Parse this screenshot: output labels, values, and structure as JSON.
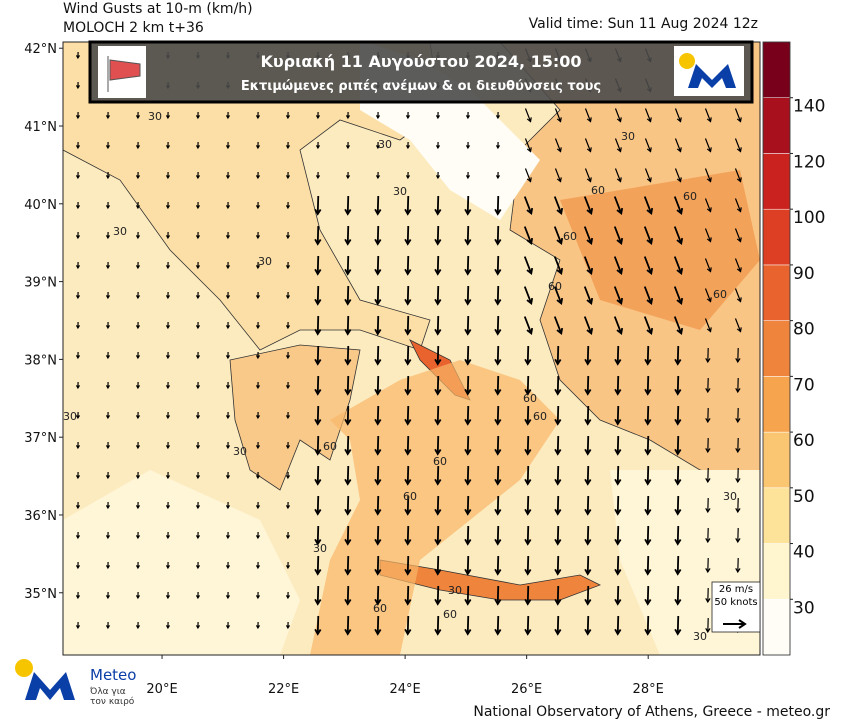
{
  "header": {
    "title": "Wind Gusts at 10-m (km/h)",
    "model": "MOLOCH 2 km t+36",
    "valid_time": "Valid time: Sun 11 Aug 2024 12z"
  },
  "banner": {
    "date": "Κυριακή  11 Αυγούστου 2024, 15:00",
    "subtitle": "Εκτιμώμενες ριπές ανέμων & οι διευθύνσεις τους"
  },
  "map": {
    "lat_ticks": [
      {
        "value": 42,
        "label": "42°N"
      },
      {
        "value": 41,
        "label": "41°N"
      },
      {
        "value": 40,
        "label": "40°N"
      },
      {
        "value": 39,
        "label": "39°N"
      },
      {
        "value": 38,
        "label": "38°N"
      },
      {
        "value": 37,
        "label": "37°N"
      },
      {
        "value": 36,
        "label": "36°N"
      },
      {
        "value": 35,
        "label": "35°N"
      }
    ],
    "lon_ticks": [
      {
        "value": 20,
        "label": "20°E"
      },
      {
        "value": 22,
        "label": "22°E"
      },
      {
        "value": 24,
        "label": "24°E"
      },
      {
        "value": 26,
        "label": "26°E"
      },
      {
        "value": 28,
        "label": "28°E"
      }
    ],
    "lat_range": [
      34.2,
      42.08
    ],
    "lon_range": [
      18.37,
      29.84
    ],
    "contour_labels": [
      "30",
      "30",
      "30",
      "30",
      "30",
      "60",
      "60",
      "60",
      "60",
      "60",
      "60",
      "30",
      "30",
      "60",
      "60",
      "30",
      "60",
      "60",
      "30",
      "30",
      "60",
      "30",
      "60",
      "30"
    ],
    "vector_key": {
      "speed": "26 m/s",
      "knots": "50 knots"
    }
  },
  "colorbar": {
    "levels": [
      30,
      40,
      50,
      60,
      70,
      80,
      90,
      100,
      120,
      140
    ],
    "colors": [
      "#fffdf6",
      "#fff5cf",
      "#fde29a",
      "#fbc672",
      "#f6a44e",
      "#ef843c",
      "#e8632e",
      "#dc3f24",
      "#c9221f",
      "#a8101e",
      "#78001a"
    ]
  },
  "footer": {
    "brand": "Meteo",
    "slogan1": "Όλα για",
    "slogan2": "τον καιρό",
    "credit": "National Observatory of Athens, Greece - meteo.gr"
  }
}
